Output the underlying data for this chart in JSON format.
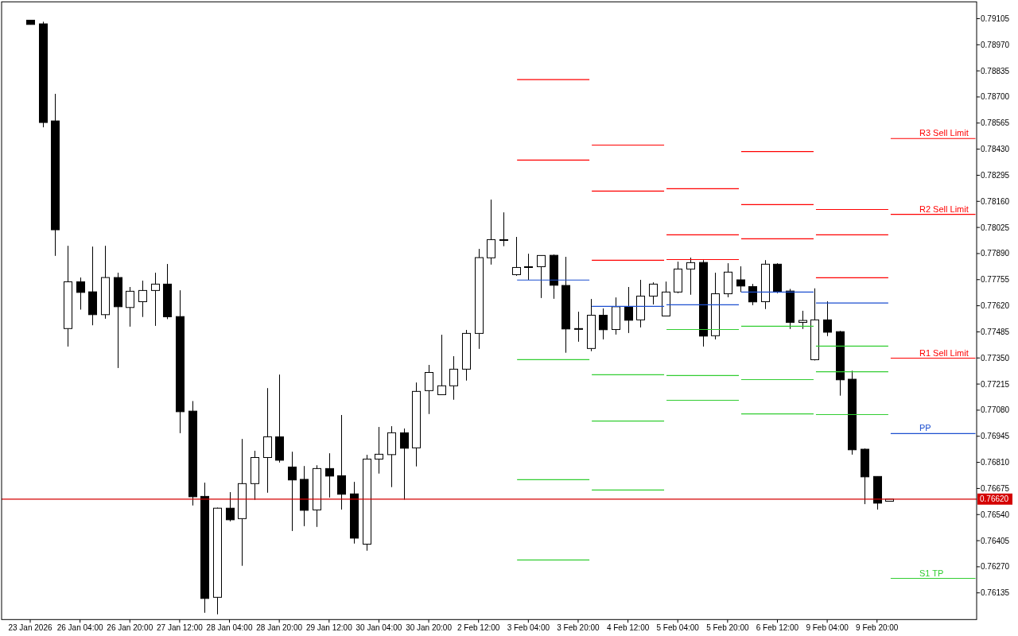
{
  "chart_data": {
    "type": "candlestick",
    "categories": [
      "23 Jan 2026",
      null,
      null,
      null,
      "26 Jan 04:00",
      null,
      null,
      null,
      "26 Jan 20:00",
      null,
      null,
      null,
      "27 Jan 12:00",
      null,
      null,
      null,
      "28 Jan 04:00",
      null,
      null,
      null,
      "28 Jan 20:00",
      null,
      null,
      null,
      "29 Jan 12:00",
      null,
      null,
      null,
      "30 Jan 04:00",
      null,
      null,
      null,
      "30 Jan 20:00",
      null,
      null,
      null,
      "2 Feb 12:00",
      null,
      null,
      null,
      "3 Feb 04:00",
      null,
      null,
      null,
      "3 Feb 20:00",
      null,
      null,
      null,
      "4 Feb 12:00",
      null,
      null,
      null,
      "5 Feb 04:00",
      null,
      null,
      null,
      "5 Feb 20:00",
      null,
      null,
      null,
      "6 Feb 12:00",
      null,
      null,
      null,
      "9 Feb 04:00",
      null,
      null,
      null,
      "9 Feb 20:00",
      null,
      null,
      null,
      null,
      null,
      null,
      null,
      null
    ],
    "ohlc": [
      [
        0.79097,
        0.79097,
        0.79075,
        0.79075
      ],
      [
        0.79078,
        0.79089,
        0.78543,
        0.78568
      ],
      [
        0.78576,
        0.78716,
        0.77878,
        0.78013
      ],
      [
        0.77502,
        0.7793,
        0.77409,
        0.77744
      ],
      [
        0.77744,
        0.77766,
        0.776,
        0.77689
      ],
      [
        0.77692,
        0.77926,
        0.77519,
        0.77574
      ],
      [
        0.77574,
        0.7793,
        0.77553,
        0.77766
      ],
      [
        0.77766,
        0.77791,
        0.77298,
        0.77615
      ],
      [
        0.77611,
        0.77717,
        0.77512,
        0.77695
      ],
      [
        0.77641,
        0.7775,
        0.77562,
        0.77699
      ],
      [
        0.77699,
        0.77791,
        0.77516,
        0.77732
      ],
      [
        0.77732,
        0.77836,
        0.77551,
        0.77563
      ],
      [
        0.77564,
        0.777,
        0.76961,
        0.77072
      ],
      [
        0.77075,
        0.77127,
        0.76587,
        0.76632
      ],
      [
        0.76634,
        0.76705,
        0.76032,
        0.76106
      ],
      [
        0.76112,
        0.76576,
        0.76024,
        0.76573
      ],
      [
        0.76573,
        0.76656,
        0.76505,
        0.76513
      ],
      [
        0.76519,
        0.76931,
        0.76275,
        0.767
      ],
      [
        0.767,
        0.7687,
        0.76616,
        0.76835
      ],
      [
        0.76835,
        0.77194,
        0.76653,
        0.76942
      ],
      [
        0.76942,
        0.77264,
        0.76809,
        0.76821
      ],
      [
        0.76786,
        0.76865,
        0.76455,
        0.76719
      ],
      [
        0.76722,
        0.76791,
        0.7648,
        0.76562
      ],
      [
        0.76564,
        0.76795,
        0.76476,
        0.76778
      ],
      [
        0.76778,
        0.76857,
        0.76628,
        0.76739
      ],
      [
        0.76741,
        0.77055,
        0.76566,
        0.76645
      ],
      [
        0.76647,
        0.76709,
        0.7639,
        0.76418
      ],
      [
        0.76387,
        0.76849,
        0.76353,
        0.76827
      ],
      [
        0.76827,
        0.76993,
        0.76752,
        0.76852
      ],
      [
        0.7685,
        0.76997,
        0.76682,
        0.76963
      ],
      [
        0.76963,
        0.76985,
        0.76617,
        0.76883
      ],
      [
        0.76885,
        0.77223,
        0.76789,
        0.77177
      ],
      [
        0.77181,
        0.77314,
        0.7706,
        0.77275
      ],
      [
        0.7716,
        0.7747,
        0.7716,
        0.77206
      ],
      [
        0.77206,
        0.77359,
        0.77134,
        0.77292
      ],
      [
        0.77292,
        0.77495,
        0.77233,
        0.77477
      ],
      [
        0.77477,
        0.77914,
        0.77397,
        0.77869
      ],
      [
        0.77868,
        0.78169,
        0.77833,
        0.77962
      ],
      [
        0.77962,
        0.78103,
        0.77928,
        0.77959
      ],
      [
        0.77781,
        0.77976,
        0.77775,
        0.77818
      ],
      [
        0.77822,
        0.77889,
        0.77754,
        0.77819
      ],
      [
        0.77822,
        0.7788,
        0.7766,
        0.7788
      ],
      [
        0.77881,
        0.77885,
        0.77656,
        0.77726
      ],
      [
        0.77725,
        0.77873,
        0.77377,
        0.775
      ],
      [
        0.77502,
        0.77589,
        0.77434,
        0.77502
      ],
      [
        0.77399,
        0.77655,
        0.77385,
        0.77571
      ],
      [
        0.77571,
        0.77606,
        0.77446,
        0.77496
      ],
      [
        0.77497,
        0.77663,
        0.77471,
        0.77615
      ],
      [
        0.77615,
        0.77717,
        0.77479,
        0.77545
      ],
      [
        0.77547,
        0.77754,
        0.77508,
        0.7767
      ],
      [
        0.7767,
        0.77741,
        0.77627,
        0.77732
      ],
      [
        0.77567,
        0.77745,
        0.77567,
        0.77691
      ],
      [
        0.77691,
        0.77848,
        0.77685,
        0.7781
      ],
      [
        0.7781,
        0.77869,
        0.77677,
        0.77843
      ],
      [
        0.77844,
        0.77856,
        0.77409,
        0.77463
      ],
      [
        0.77465,
        0.77791,
        0.77446,
        0.77682
      ],
      [
        0.77682,
        0.7784,
        0.77664,
        0.77794
      ],
      [
        0.77754,
        0.77824,
        0.77691,
        0.77722
      ],
      [
        0.77719,
        0.77733,
        0.77623,
        0.7764
      ],
      [
        0.77641,
        0.77856,
        0.77603,
        0.77835
      ],
      [
        0.77835,
        0.7784,
        0.77685,
        0.77691
      ],
      [
        0.77696,
        0.77707,
        0.775,
        0.77534
      ],
      [
        0.77534,
        0.77594,
        0.775,
        0.77544
      ],
      [
        0.77341,
        0.7771,
        0.77337,
        0.77547
      ],
      [
        0.77547,
        0.77643,
        0.77463,
        0.77483
      ],
      [
        0.77486,
        0.7749,
        0.77155,
        0.77237
      ],
      [
        0.7724,
        0.77284,
        0.7685,
        0.76875
      ],
      [
        0.76878,
        0.76882,
        0.76594,
        0.76735
      ],
      [
        0.76737,
        0.76737,
        0.76566,
        0.76599
      ],
      [
        0.76609,
        0.7662,
        0.76609,
        0.7662
      ],
      null,
      null,
      null,
      null,
      null,
      null,
      null
    ],
    "series": [
      {
        "type": "line",
        "color": "#ff0000",
        "values": [
          null,
          null,
          null,
          null,
          null,
          null,
          null,
          null,
          null,
          null,
          null,
          null,
          null,
          null,
          null,
          null,
          null,
          null,
          null,
          null,
          null,
          null,
          null,
          null,
          null,
          null,
          null,
          null,
          null,
          null,
          null,
          null,
          null,
          null,
          null,
          null,
          null,
          null,
          null,
          null,
          null,
          null,
          null,
          null,
          null,
          null,
          null,
          null,
          null,
          null,
          null,
          0.78225,
          0.78225,
          0.78225,
          0.78225,
          0.78225,
          0.78225,
          0.78225,
          null,
          null,
          null,
          null,
          null,
          0.78118,
          0.78118,
          0.78118,
          0.78118,
          0.78118,
          0.78118,
          0.78118,
          null,
          null,
          null,
          null,
          null,
          null,
          null
        ]
      },
      {
        "type": "line",
        "color": "#ff0000",
        "values": [
          null,
          null,
          null,
          null,
          null,
          null,
          null,
          null,
          null,
          null,
          null,
          null,
          null,
          null,
          null,
          null,
          null,
          null,
          null,
          null,
          null,
          null,
          null,
          null,
          null,
          null,
          null,
          null,
          null,
          null,
          null,
          null,
          null,
          null,
          null,
          null,
          null,
          null,
          null,
          null,
          null,
          null,
          null,
          null,
          null,
          0.78451,
          0.78451,
          0.78451,
          0.78451,
          0.78451,
          0.78451,
          0.78451,
          null,
          null,
          null,
          null,
          null,
          0.78418,
          0.78418,
          0.78418,
          0.78418,
          0.78418,
          0.78418,
          0.78418,
          null,
          null,
          null,
          null,
          null,
          null,
          null,
          null,
          null,
          null,
          null,
          null,
          null
        ]
      },
      {
        "type": "line",
        "name": "R3 Sell Limit",
        "color": "#ff0000",
        "values": [
          null,
          null,
          null,
          null,
          null,
          null,
          null,
          null,
          null,
          null,
          null,
          null,
          null,
          null,
          null,
          null,
          null,
          null,
          null,
          null,
          null,
          null,
          null,
          null,
          null,
          null,
          null,
          null,
          null,
          null,
          null,
          null,
          null,
          null,
          null,
          null,
          null,
          null,
          null,
          null,
          null,
          null,
          null,
          null,
          null,
          null,
          null,
          null,
          null,
          null,
          null,
          null,
          null,
          null,
          null,
          null,
          null,
          null,
          null,
          null,
          null,
          null,
          null,
          null,
          null,
          null,
          null,
          null,
          null,
          0.78485,
          0.78485,
          0.78485,
          0.78485,
          0.78485,
          0.78485,
          0.78485,
          0.78485
        ]
      },
      {
        "type": "line",
        "color": "#ff0000",
        "values": [
          null,
          null,
          null,
          null,
          null,
          null,
          null,
          null,
          null,
          null,
          null,
          null,
          null,
          null,
          null,
          null,
          null,
          null,
          null,
          null,
          null,
          null,
          null,
          null,
          null,
          null,
          null,
          null,
          null,
          null,
          null,
          null,
          null,
          null,
          null,
          null,
          null,
          null,
          null,
          0.7879,
          0.7879,
          0.7879,
          0.7879,
          0.7879,
          0.7879,
          0.7879,
          null,
          null,
          null,
          null,
          null,
          0.77987,
          0.77987,
          0.77987,
          0.77987,
          0.77987,
          0.77987,
          0.77987,
          null,
          null,
          null,
          null,
          null,
          null,
          null,
          null,
          null,
          null,
          null,
          null,
          null,
          null,
          null,
          null,
          null,
          null,
          null
        ]
      },
      {
        "type": "line",
        "color": "#ff0000",
        "values": [
          null,
          null,
          null,
          null,
          null,
          null,
          null,
          null,
          null,
          null,
          null,
          null,
          null,
          null,
          null,
          null,
          null,
          null,
          null,
          null,
          null,
          null,
          null,
          null,
          null,
          null,
          null,
          null,
          null,
          null,
          null,
          null,
          null,
          null,
          null,
          null,
          null,
          null,
          null,
          null,
          null,
          null,
          null,
          null,
          null,
          null,
          null,
          null,
          null,
          null,
          null,
          null,
          null,
          null,
          null,
          null,
          null,
          null,
          null,
          null,
          null,
          null,
          null,
          0.77987,
          0.77987,
          0.77987,
          0.77987,
          0.77987,
          0.77987,
          0.77987,
          null,
          null,
          null,
          null,
          null,
          null,
          null
        ]
      },
      {
        "type": "line",
        "color": "#ff0000",
        "values": [
          null,
          null,
          null,
          null,
          null,
          null,
          null,
          null,
          null,
          null,
          null,
          null,
          null,
          null,
          null,
          null,
          null,
          null,
          null,
          null,
          null,
          null,
          null,
          null,
          null,
          null,
          null,
          null,
          null,
          null,
          null,
          null,
          null,
          null,
          null,
          null,
          null,
          null,
          null,
          null,
          null,
          null,
          null,
          null,
          null,
          0.78213,
          0.78213,
          0.78213,
          0.78213,
          0.78213,
          0.78213,
          0.78213,
          null,
          null,
          null,
          null,
          null,
          0.78143,
          0.78143,
          0.78143,
          0.78143,
          0.78143,
          0.78143,
          0.78143,
          null,
          null,
          null,
          null,
          null,
          null,
          null,
          null,
          null,
          null,
          null,
          null,
          null
        ]
      },
      {
        "type": "line",
        "name": "R2 Sell Limit",
        "color": "#ff0000",
        "values": [
          null,
          null,
          null,
          null,
          null,
          null,
          null,
          null,
          null,
          null,
          null,
          null,
          null,
          null,
          null,
          null,
          null,
          null,
          null,
          null,
          null,
          null,
          null,
          null,
          null,
          null,
          null,
          null,
          null,
          null,
          null,
          null,
          null,
          null,
          null,
          null,
          null,
          null,
          null,
          null,
          null,
          null,
          null,
          null,
          null,
          null,
          null,
          null,
          null,
          null,
          null,
          null,
          null,
          null,
          null,
          null,
          null,
          null,
          null,
          null,
          null,
          null,
          null,
          null,
          null,
          null,
          null,
          null,
          null,
          0.78093,
          0.78093,
          0.78093,
          0.78093,
          0.78093,
          0.78093,
          0.78093,
          0.78093
        ]
      },
      {
        "type": "line",
        "color": "#ff0000",
        "values": [
          null,
          null,
          null,
          null,
          null,
          null,
          null,
          null,
          null,
          null,
          null,
          null,
          null,
          null,
          null,
          null,
          null,
          null,
          null,
          null,
          null,
          null,
          null,
          null,
          null,
          null,
          null,
          null,
          null,
          null,
          null,
          null,
          null,
          null,
          null,
          null,
          null,
          null,
          null,
          0.78373,
          0.78373,
          0.78373,
          0.78373,
          0.78373,
          0.78373,
          0.78373,
          null,
          null,
          null,
          null,
          null,
          0.77859,
          0.77859,
          0.77859,
          0.77859,
          0.77859,
          0.77859,
          0.77859,
          null,
          null,
          null,
          null,
          null,
          0.77765,
          0.77765,
          0.77765,
          0.77765,
          0.77765,
          0.77765,
          0.77765,
          null,
          null,
          null,
          null,
          null,
          null,
          null
        ]
      },
      {
        "type": "line",
        "color": "#ff0000",
        "values": [
          null,
          null,
          null,
          null,
          null,
          null,
          null,
          null,
          null,
          null,
          null,
          null,
          null,
          null,
          null,
          null,
          null,
          null,
          null,
          null,
          null,
          null,
          null,
          null,
          null,
          null,
          null,
          null,
          null,
          null,
          null,
          null,
          null,
          null,
          null,
          null,
          null,
          null,
          null,
          null,
          null,
          null,
          null,
          null,
          null,
          0.77855,
          0.77855,
          0.77855,
          0.77855,
          0.77855,
          0.77855,
          0.77855,
          null,
          null,
          null,
          null,
          null,
          0.77966,
          0.77966,
          0.77966,
          0.77966,
          0.77966,
          0.77966,
          0.77966,
          null,
          null,
          null,
          null,
          null,
          null,
          null,
          null,
          null,
          null,
          null,
          null,
          null
        ]
      },
      {
        "type": "line",
        "name": "R1 Sell Limit",
        "color": "#ff0000",
        "values": [
          null,
          null,
          null,
          null,
          null,
          null,
          null,
          null,
          null,
          null,
          null,
          null,
          null,
          null,
          null,
          null,
          null,
          null,
          null,
          null,
          null,
          null,
          null,
          null,
          null,
          null,
          null,
          null,
          null,
          null,
          null,
          null,
          null,
          null,
          null,
          null,
          null,
          null,
          null,
          null,
          null,
          null,
          null,
          null,
          null,
          null,
          null,
          null,
          null,
          null,
          null,
          null,
          null,
          null,
          null,
          null,
          null,
          null,
          null,
          null,
          null,
          null,
          null,
          null,
          null,
          null,
          null,
          null,
          null,
          0.77349,
          0.77349,
          0.77349,
          0.77349,
          0.77349,
          0.77349,
          0.77349,
          0.77349
        ]
      },
      {
        "type": "line",
        "color": "#1c4fd0",
        "values": [
          null,
          null,
          null,
          null,
          null,
          null,
          null,
          null,
          null,
          null,
          null,
          null,
          null,
          null,
          null,
          null,
          null,
          null,
          null,
          null,
          null,
          null,
          null,
          null,
          null,
          null,
          null,
          null,
          null,
          null,
          null,
          null,
          null,
          null,
          null,
          null,
          null,
          null,
          null,
          0.77753,
          0.77753,
          0.77753,
          0.77753,
          0.77753,
          0.77753,
          0.77753,
          null,
          null,
          null,
          null,
          null,
          0.77625,
          0.77625,
          0.77625,
          0.77625,
          0.77625,
          0.77625,
          0.77625,
          null,
          null,
          null,
          null,
          null,
          0.77634,
          0.77634,
          0.77634,
          0.77634,
          0.77634,
          0.77634,
          0.77634,
          null,
          null,
          null,
          null,
          null,
          null,
          null
        ]
      },
      {
        "type": "line",
        "color": "#1c4fd0",
        "values": [
          null,
          null,
          null,
          null,
          null,
          null,
          null,
          null,
          null,
          null,
          null,
          null,
          null,
          null,
          null,
          null,
          null,
          null,
          null,
          null,
          null,
          null,
          null,
          null,
          null,
          null,
          null,
          null,
          null,
          null,
          null,
          null,
          null,
          null,
          null,
          null,
          null,
          null,
          null,
          null,
          null,
          null,
          null,
          null,
          null,
          0.77617,
          0.77617,
          0.77617,
          0.77617,
          0.77617,
          0.77617,
          0.77617,
          null,
          null,
          null,
          null,
          null,
          0.77691,
          0.77691,
          0.77691,
          0.77691,
          0.77691,
          0.77691,
          0.77691,
          null,
          null,
          null,
          null,
          null,
          null,
          null,
          null,
          null,
          null,
          null,
          null,
          null
        ]
      },
      {
        "type": "line",
        "name": "PP",
        "color": "#1c4fd0",
        "values": [
          null,
          null,
          null,
          null,
          null,
          null,
          null,
          null,
          null,
          null,
          null,
          null,
          null,
          null,
          null,
          null,
          null,
          null,
          null,
          null,
          null,
          null,
          null,
          null,
          null,
          null,
          null,
          null,
          null,
          null,
          null,
          null,
          null,
          null,
          null,
          null,
          null,
          null,
          null,
          null,
          null,
          null,
          null,
          null,
          null,
          null,
          null,
          null,
          null,
          null,
          null,
          null,
          null,
          null,
          null,
          null,
          null,
          null,
          null,
          null,
          null,
          null,
          null,
          null,
          null,
          null,
          null,
          null,
          null,
          0.76959,
          0.76959,
          0.76959,
          0.76959,
          0.76959,
          0.76959,
          0.76959,
          0.76959
        ]
      },
      {
        "type": "line",
        "color": "#32cd32",
        "values": [
          null,
          null,
          null,
          null,
          null,
          null,
          null,
          null,
          null,
          null,
          null,
          null,
          null,
          null,
          null,
          null,
          null,
          null,
          null,
          null,
          null,
          null,
          null,
          null,
          null,
          null,
          null,
          null,
          null,
          null,
          null,
          null,
          null,
          null,
          null,
          null,
          null,
          null,
          null,
          0.77341,
          0.77341,
          0.77341,
          0.77341,
          0.77341,
          0.77341,
          0.77341,
          null,
          null,
          null,
          null,
          null,
          0.77497,
          0.77497,
          0.77497,
          0.77497,
          0.77497,
          0.77497,
          0.77497,
          null,
          null,
          null,
          null,
          null,
          0.77411,
          0.77411,
          0.77411,
          0.77411,
          0.77411,
          0.77411,
          0.77411,
          null,
          null,
          null,
          null,
          null,
          null,
          null
        ]
      },
      {
        "type": "line",
        "color": "#32cd32",
        "values": [
          null,
          null,
          null,
          null,
          null,
          null,
          null,
          null,
          null,
          null,
          null,
          null,
          null,
          null,
          null,
          null,
          null,
          null,
          null,
          null,
          null,
          null,
          null,
          null,
          null,
          null,
          null,
          null,
          null,
          null,
          null,
          null,
          null,
          null,
          null,
          null,
          null,
          null,
          null,
          null,
          null,
          null,
          null,
          null,
          null,
          0.77263,
          0.77263,
          0.77263,
          0.77263,
          0.77263,
          0.77263,
          0.77263,
          null,
          null,
          null,
          null,
          null,
          0.77514,
          0.77514,
          0.77514,
          0.77514,
          0.77514,
          0.77514,
          0.77514,
          null,
          null,
          null,
          null,
          null,
          null,
          null,
          null,
          null,
          null,
          null,
          null,
          null
        ]
      },
      {
        "type": "line",
        "name": "S1 TP",
        "color": "#32cd32",
        "values": [
          null,
          null,
          null,
          null,
          null,
          null,
          null,
          null,
          null,
          null,
          null,
          null,
          null,
          null,
          null,
          null,
          null,
          null,
          null,
          null,
          null,
          null,
          null,
          null,
          null,
          null,
          null,
          null,
          null,
          null,
          null,
          null,
          null,
          null,
          null,
          null,
          null,
          null,
          null,
          null,
          null,
          null,
          null,
          null,
          null,
          null,
          null,
          null,
          null,
          null,
          null,
          null,
          null,
          null,
          null,
          null,
          null,
          null,
          null,
          null,
          null,
          null,
          null,
          null,
          null,
          null,
          null,
          null,
          null,
          0.7621,
          0.7621,
          0.7621,
          0.7621,
          0.7621,
          0.7621,
          0.7621,
          0.7621
        ]
      },
      {
        "type": "line",
        "color": "#32cd32",
        "values": [
          null,
          null,
          null,
          null,
          null,
          null,
          null,
          null,
          null,
          null,
          null,
          null,
          null,
          null,
          null,
          null,
          null,
          null,
          null,
          null,
          null,
          null,
          null,
          null,
          null,
          null,
          null,
          null,
          null,
          null,
          null,
          null,
          null,
          null,
          null,
          null,
          null,
          null,
          null,
          0.7672,
          0.7672,
          0.7672,
          0.7672,
          0.7672,
          0.7672,
          0.7672,
          null,
          null,
          null,
          null,
          null,
          0.77259,
          0.77259,
          0.77259,
          0.77259,
          0.77259,
          0.77259,
          0.77259,
          null,
          null,
          null,
          null,
          null,
          0.77279,
          0.77279,
          0.77279,
          0.77279,
          0.77279,
          0.77279,
          0.77279,
          null,
          null,
          null,
          null,
          null,
          null,
          null
        ]
      },
      {
        "type": "line",
        "color": "#32cd32",
        "values": [
          null,
          null,
          null,
          null,
          null,
          null,
          null,
          null,
          null,
          null,
          null,
          null,
          null,
          null,
          null,
          null,
          null,
          null,
          null,
          null,
          null,
          null,
          null,
          null,
          null,
          null,
          null,
          null,
          null,
          null,
          null,
          null,
          null,
          null,
          null,
          null,
          null,
          null,
          null,
          null,
          null,
          null,
          null,
          null,
          null,
          0.77024,
          0.77024,
          0.77024,
          0.77024,
          0.77024,
          0.77024,
          0.77024,
          null,
          null,
          null,
          null,
          null,
          0.77238,
          0.77238,
          0.77238,
          0.77238,
          0.77238,
          0.77238,
          0.77238,
          null,
          null,
          null,
          null,
          null,
          null,
          null,
          null,
          null,
          null,
          null,
          null,
          null
        ]
      },
      {
        "type": "line",
        "color": "#32cd32",
        "values": [
          null,
          null,
          null,
          null,
          null,
          null,
          null,
          null,
          null,
          null,
          null,
          null,
          null,
          null,
          null,
          null,
          null,
          null,
          null,
          null,
          null,
          null,
          null,
          null,
          null,
          null,
          null,
          null,
          null,
          null,
          null,
          null,
          null,
          null,
          null,
          null,
          null,
          null,
          null,
          0.76305,
          0.76305,
          0.76305,
          0.76305,
          0.76305,
          0.76305,
          0.76305,
          null,
          null,
          null,
          null,
          null,
          0.77131,
          0.77131,
          0.77131,
          0.77131,
          0.77131,
          0.77131,
          0.77131,
          null,
          null,
          null,
          null,
          null,
          0.77057,
          0.77057,
          0.77057,
          0.77057,
          0.77057,
          0.77057,
          0.77057,
          null,
          null,
          null,
          null,
          null,
          null,
          null
        ]
      },
      {
        "type": "line",
        "color": "#32cd32",
        "values": [
          null,
          null,
          null,
          null,
          null,
          null,
          null,
          null,
          null,
          null,
          null,
          null,
          null,
          null,
          null,
          null,
          null,
          null,
          null,
          null,
          null,
          null,
          null,
          null,
          null,
          null,
          null,
          null,
          null,
          null,
          null,
          null,
          null,
          null,
          null,
          null,
          null,
          null,
          null,
          null,
          null,
          null,
          null,
          null,
          null,
          0.76667,
          0.76667,
          0.76667,
          0.76667,
          0.76667,
          0.76667,
          0.76667,
          null,
          null,
          null,
          null,
          null,
          0.77061,
          0.77061,
          0.77061,
          0.77061,
          0.77061,
          0.77061,
          0.77061,
          null,
          null,
          null,
          null,
          null,
          null,
          null,
          null,
          null,
          null,
          null,
          null,
          null
        ]
      }
    ],
    "ylim": [
      0.75997,
      0.79192
    ],
    "yticks": [
      0.79105,
      {
        "value": 0.7897,
        "label": "0.78970"
      },
      0.78835,
      {
        "value": 0.787,
        "label": "0.78700"
      },
      0.78565,
      {
        "value": 0.7843,
        "label": "0.78430"
      },
      0.78295,
      {
        "value": 0.7816,
        "label": "0.78160"
      },
      0.78025,
      {
        "value": 0.7789,
        "label": "0.77890"
      },
      0.77755,
      {
        "value": 0.7762,
        "label": "0.77620"
      },
      0.77485,
      {
        "value": 0.7735,
        "label": "0.77350"
      },
      0.77215,
      {
        "value": 0.7708,
        "label": "0.77080"
      },
      0.76945,
      {
        "value": 0.7681,
        "label": "0.76810"
      },
      0.76675,
      {
        "value": 0.7654,
        "label": "0.76540"
      },
      0.76405,
      {
        "value": 0.7627,
        "label": "0.76270"
      },
      0.76135
    ],
    "ref_lines": [
      {
        "axis": "y",
        "value": 0.7662,
        "label": "0.76620",
        "color": "#d40000"
      }
    ]
  }
}
